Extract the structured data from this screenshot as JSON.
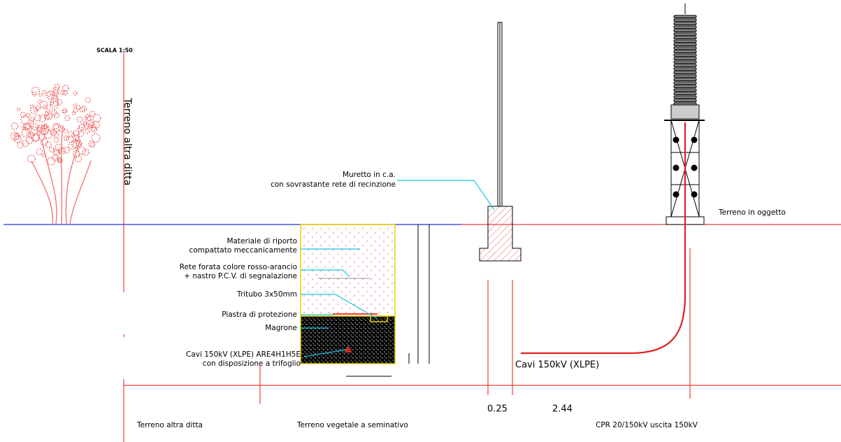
{
  "scale": "SCALA 1:50",
  "side_label": "Terreno altra ditta",
  "ground_label": "Terreno in oggetto",
  "wall_callout": [
    "Muretto in c.a.",
    "con sovrastante rete di recinzione"
  ],
  "trench_callouts": [
    [
      "Materiale di riporto",
      "compattato meccanicamente"
    ],
    [
      "Rete forata colore rosso-arancio",
      "+ nastro P.C.V. di segnalazione"
    ],
    [
      "Tritubo 3x50mm"
    ],
    [
      "Piastra di protezione"
    ],
    [
      "Magrone"
    ],
    [
      "Cavi 150kV (XLPE) ARE4H1H5E",
      "con disposizione a trifoglio"
    ]
  ],
  "cable_label": "Cavi 150kV (XLPE)",
  "dimensions": [
    "0.25",
    "2.44"
  ],
  "zones": [
    "Terreno altra ditta",
    "Terreno vegetale a seminativo",
    "CPR 20/150kV uscita 150kV"
  ]
}
